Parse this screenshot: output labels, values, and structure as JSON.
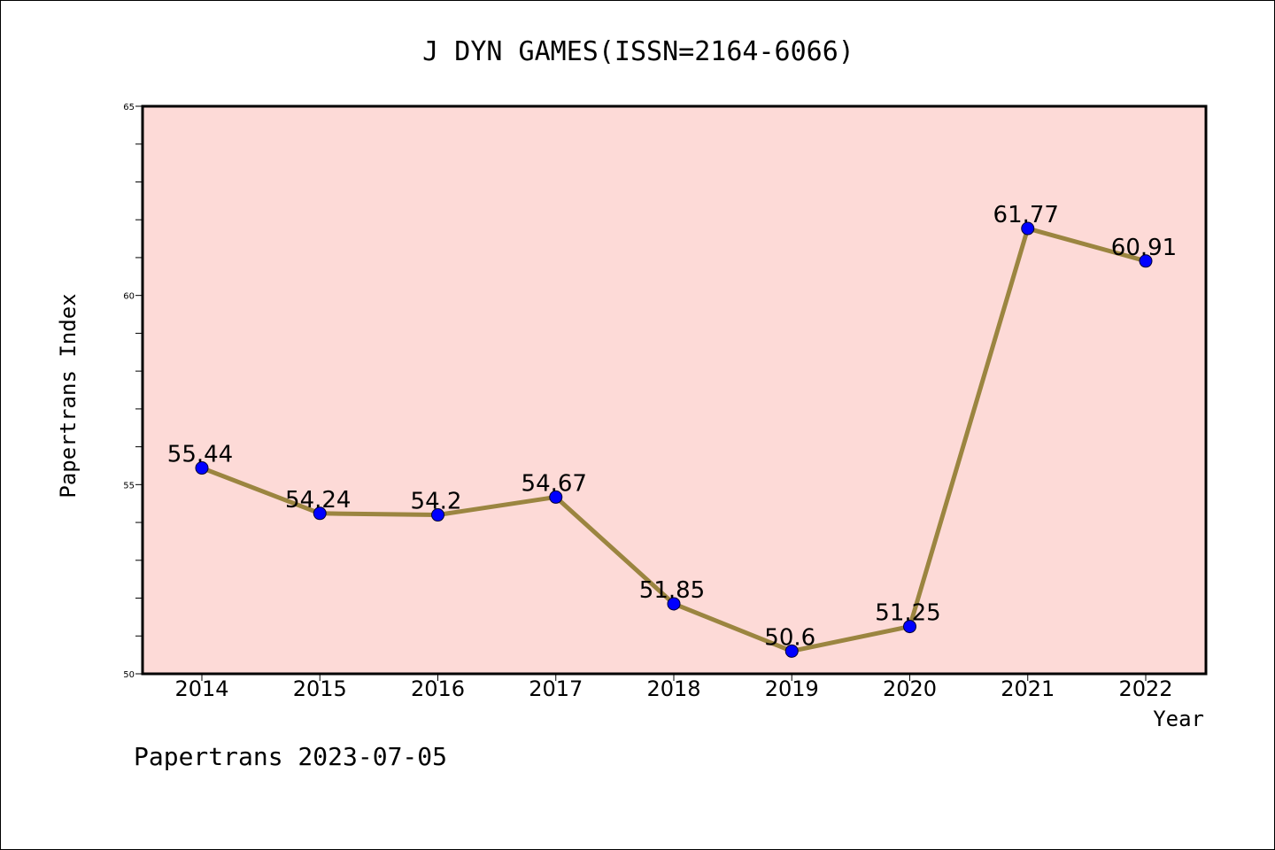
{
  "chart_data": {
    "type": "line",
    "title": "J DYN GAMES(ISSN=2164-6066)",
    "xlabel": "Year",
    "ylabel": "Papertrans Index",
    "categories": [
      "2014",
      "2015",
      "2016",
      "2017",
      "2018",
      "2019",
      "2020",
      "2021",
      "2022"
    ],
    "series": [
      {
        "values": [
          55.44,
          54.24,
          54.2,
          54.67,
          51.85,
          50.6,
          51.25,
          61.77,
          60.91
        ],
        "data_labels": [
          "55.44",
          "54.24",
          "54.2",
          "54.67",
          "51.85",
          "50.6",
          "51.25",
          "61.77",
          "60.91"
        ],
        "line_color": "#9b8540",
        "marker_color": "#0000ff"
      }
    ],
    "ylim": [
      50,
      65
    ],
    "yticks": [
      "50",
      "55",
      "60",
      "65"
    ],
    "plot_background": "#fddad7",
    "grid": false
  },
  "footer": {
    "text": "Papertrans 2023-07-05"
  }
}
